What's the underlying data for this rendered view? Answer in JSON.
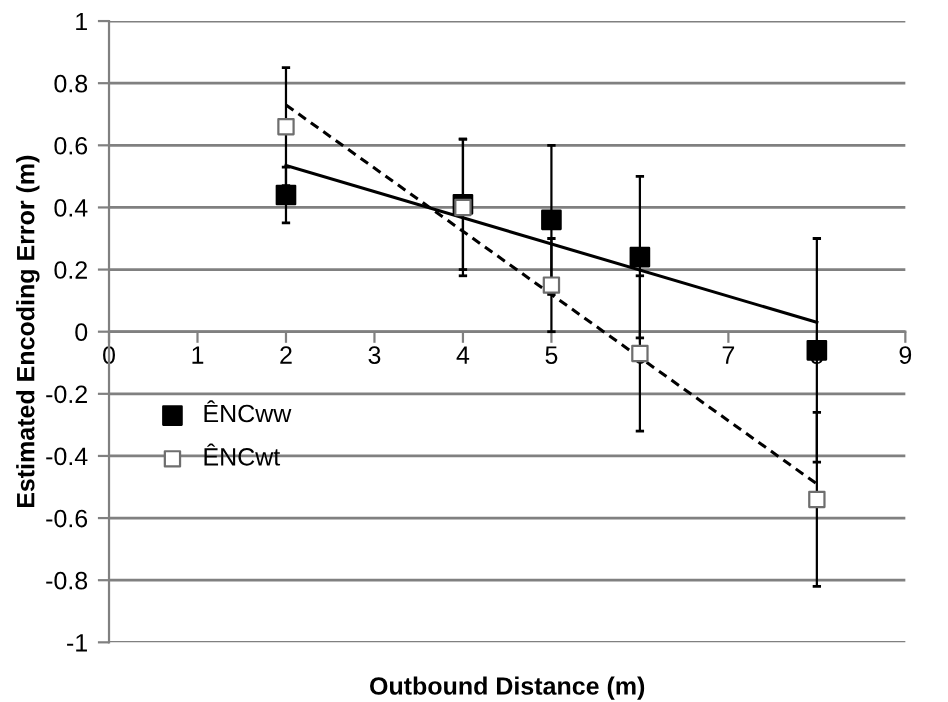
{
  "chart_data": {
    "type": "scatter",
    "xlabel": "Outbound Distance (m)",
    "ylabel": "Estimated Encoding Error (m)",
    "xlim": [
      0,
      9
    ],
    "ylim": [
      -1,
      1
    ],
    "xticks": [
      0,
      1,
      2,
      3,
      4,
      5,
      6,
      7,
      8,
      9
    ],
    "yticks": [
      -1,
      -0.8,
      -0.6,
      -0.4,
      -0.2,
      0,
      0.2,
      0.4,
      0.6,
      0.8,
      1
    ],
    "grid": "y",
    "legend": "left",
    "marker": "square",
    "series": [
      {
        "name": "ÊNCww",
        "color": "#000000",
        "x": [
          2,
          4,
          5,
          6,
          8
        ],
        "values": [
          0.44,
          0.41,
          0.36,
          0.24,
          -0.06
        ],
        "errors": [
          0.09,
          0.21,
          0.24,
          0.26,
          0.36
        ]
      },
      {
        "name": "ÊNCwt",
        "color": "#6e6e6e",
        "x": [
          2,
          4,
          5,
          6,
          8
        ],
        "values": [
          0.66,
          0.4,
          0.15,
          -0.07,
          -0.54
        ],
        "errors": [
          0.19,
          0.22,
          0.15,
          0.25,
          0.28
        ]
      },
      {
        "type": "line",
        "color": "#000000",
        "line_style": "solid",
        "marker": "none",
        "x": [
          2,
          8
        ],
        "values": [
          0.535,
          0.03
        ]
      },
      {
        "type": "line",
        "color": "#000000",
        "line_style": "dashed",
        "marker": "none",
        "x": [
          2,
          8
        ],
        "values": [
          0.73,
          -0.49
        ]
      }
    ]
  }
}
